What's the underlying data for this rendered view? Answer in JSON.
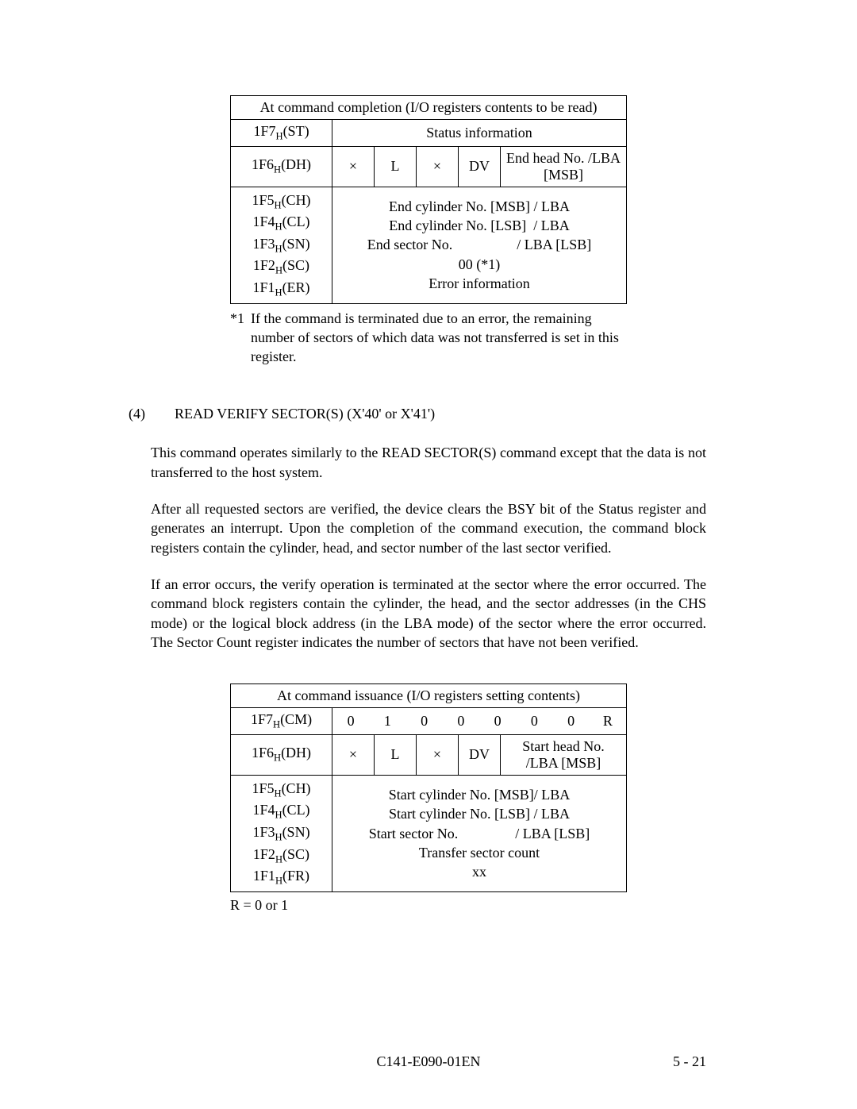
{
  "table1": {
    "title": "At command completion (I/O registers contents to be read)",
    "rows": {
      "r1": {
        "label": "1F7",
        "labelSub": "H",
        "labelSuffix": "(ST)",
        "content": "Status information"
      },
      "r2": {
        "label": "1F6",
        "labelSub": "H",
        "labelSuffix": "(DH)",
        "b1": "×",
        "b2": "L",
        "b3": "×",
        "b4": "DV",
        "b5": "End head No. /LBA [MSB]"
      },
      "multi": {
        "labels": [
          {
            "p": "1F5",
            "s": "H",
            "x": "(CH)"
          },
          {
            "p": "1F4",
            "s": "H",
            "x": "(CL)"
          },
          {
            "p": "1F3",
            "s": "H",
            "x": "(SN)"
          },
          {
            "p": "1F2",
            "s": "H",
            "x": "(SC)"
          },
          {
            "p": "1F1",
            "s": "H",
            "x": "(ER)"
          }
        ],
        "lines": [
          "End cylinder No. [MSB] / LBA",
          "End cylinder No. [LSB]  / LBA",
          "End sector No.                  / LBA [LSB]",
          "00 (*1)",
          "Error information"
        ]
      }
    }
  },
  "note1": {
    "marker": "*1",
    "text": "If the command is terminated due to an error, the remaining number of sectors of which data was not transferred is set in this register."
  },
  "section": {
    "num": "(4)",
    "title": "READ VERIFY SECTOR(S) (X'40' or X'41')"
  },
  "paragraphs": {
    "p1": "This command operates similarly to the READ SECTOR(S) command except that the data is not transferred to the host system.",
    "p2": "After all requested sectors are verified, the device clears the BSY bit of the Status register and generates an interrupt. Upon the completion of the command execution, the command block registers contain the cylinder, head, and sector number of the last sector verified.",
    "p3": "If an error occurs, the verify operation is terminated at the sector where the error occurred. The command block registers contain the cylinder, the head, and the sector addresses (in the CHS mode) or the logical block address (in the LBA mode) of the sector where the error occurred. The Sector Count register indicates the number of sectors that have not been verified."
  },
  "table2": {
    "title": "At command issuance (I/O registers setting contents)",
    "rows": {
      "r1": {
        "label": "1F7",
        "labelSub": "H",
        "labelSuffix": "(CM)",
        "bits": [
          "0",
          "1",
          "0",
          "0",
          "0",
          "0",
          "0",
          "R"
        ]
      },
      "r2": {
        "label": "1F6",
        "labelSub": "H",
        "labelSuffix": "(DH)",
        "b1": "×",
        "b2": "L",
        "b3": "×",
        "b4": "DV",
        "b5": "Start head No. /LBA [MSB]"
      },
      "multi": {
        "labels": [
          {
            "p": "1F5",
            "s": "H",
            "x": "(CH)"
          },
          {
            "p": "1F4",
            "s": "H",
            "x": "(CL)"
          },
          {
            "p": "1F3",
            "s": "H",
            "x": "(SN)"
          },
          {
            "p": "1F2",
            "s": "H",
            "x": "(SC)"
          },
          {
            "p": "1F1",
            "s": "H",
            "x": "(FR)"
          }
        ],
        "lines": [
          "Start cylinder No. [MSB]/ LBA",
          "Start cylinder No. [LSB] / LBA",
          "Start sector No.                / LBA [LSB]",
          "Transfer sector count",
          "xx"
        ]
      }
    }
  },
  "rnote": "R = 0 or 1",
  "footer": {
    "center": "C141-E090-01EN",
    "right": "5 - 21"
  }
}
